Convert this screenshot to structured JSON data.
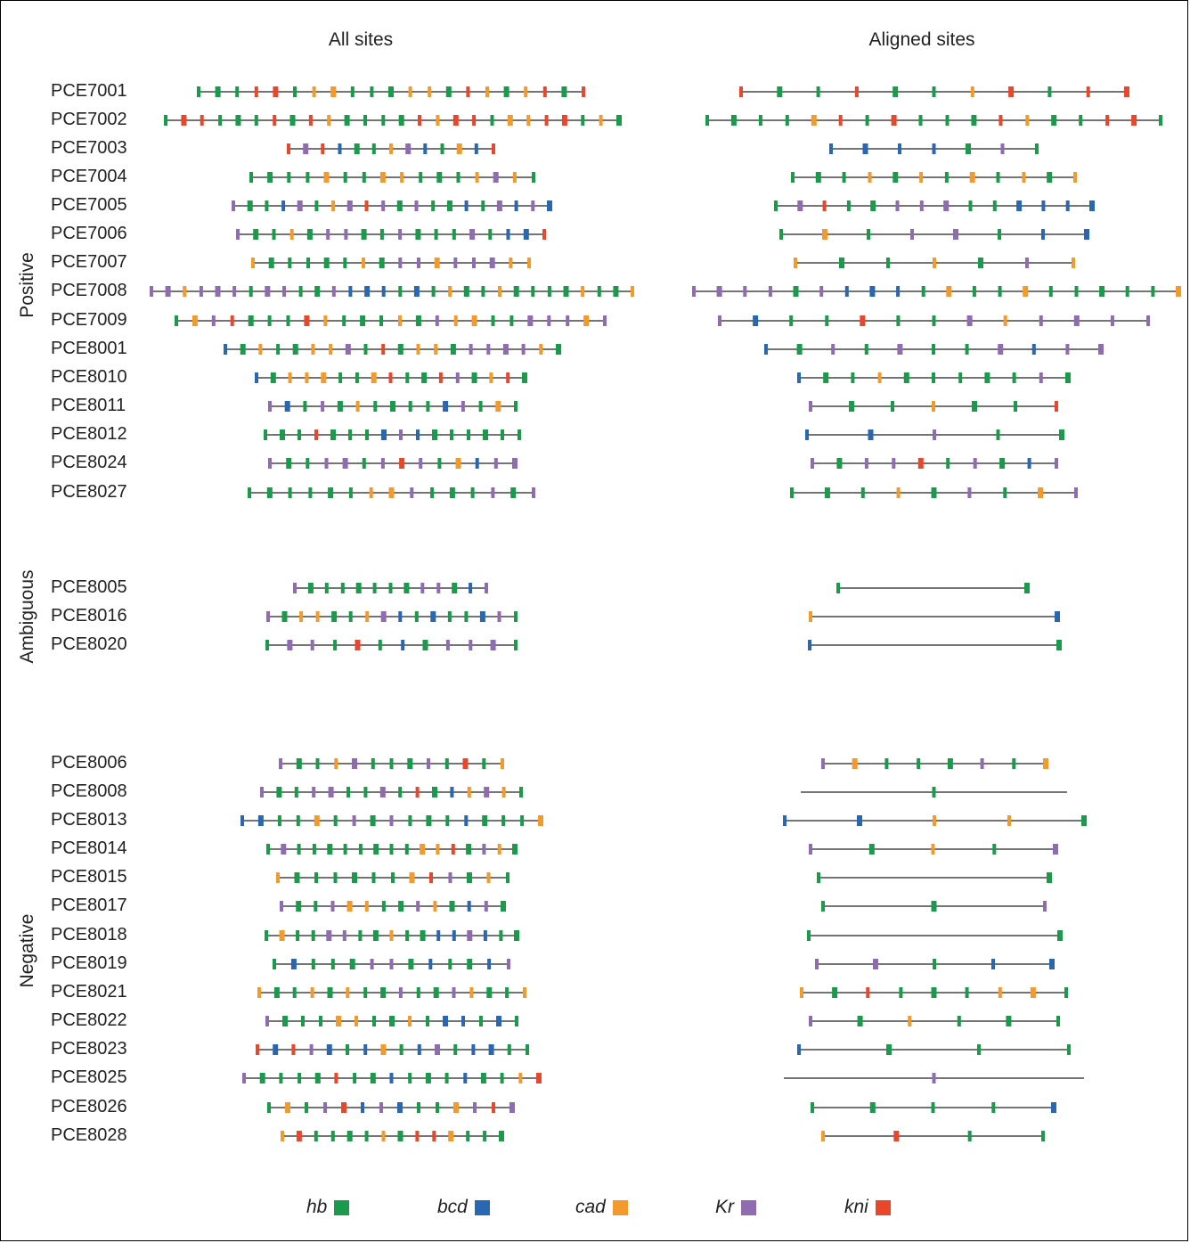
{
  "titles": {
    "all_sites": "All sites",
    "aligned_sites": "Aligned sites"
  },
  "groups": {
    "positive": "Positive",
    "ambiguous": "Ambiguous",
    "negative": "Negative"
  },
  "colors": {
    "hb": "#1a9b4c",
    "bcd": "#2a67b1",
    "cad": "#f39a2c",
    "Kr": "#8f6bb0",
    "kni": "#e8472b",
    "line": "#222222"
  },
  "legend": [
    {
      "key": "hb",
      "label": "hb"
    },
    {
      "key": "bcd",
      "label": "bcd"
    },
    {
      "key": "cad",
      "label": "cad"
    },
    {
      "key": "Kr",
      "label": "Kr"
    },
    {
      "key": "kni",
      "label": "kni"
    }
  ],
  "rows": [
    {
      "name": "PCE7001",
      "group": "positive"
    },
    {
      "name": "PCE7002",
      "group": "positive"
    },
    {
      "name": "PCE7003",
      "group": "positive"
    },
    {
      "name": "PCE7004",
      "group": "positive"
    },
    {
      "name": "PCE7005",
      "group": "positive"
    },
    {
      "name": "PCE7006",
      "group": "positive"
    },
    {
      "name": "PCE7007",
      "group": "positive"
    },
    {
      "name": "PCE7008",
      "group": "positive"
    },
    {
      "name": "PCE7009",
      "group": "positive"
    },
    {
      "name": "PCE8001",
      "group": "positive"
    },
    {
      "name": "PCE8010",
      "group": "positive"
    },
    {
      "name": "PCE8011",
      "group": "positive"
    },
    {
      "name": "PCE8012",
      "group": "positive"
    },
    {
      "name": "PCE8024",
      "group": "positive"
    },
    {
      "name": "PCE8027",
      "group": "positive"
    },
    {
      "name": "PCE8005",
      "group": "ambiguous"
    },
    {
      "name": "PCE8016",
      "group": "ambiguous"
    },
    {
      "name": "PCE8020",
      "group": "ambiguous"
    },
    {
      "name": "PCE8006",
      "group": "negative"
    },
    {
      "name": "PCE8008",
      "group": "negative"
    },
    {
      "name": "PCE8013",
      "group": "negative"
    },
    {
      "name": "PCE8014",
      "group": "negative"
    },
    {
      "name": "PCE8015",
      "group": "negative"
    },
    {
      "name": "PCE8017",
      "group": "negative"
    },
    {
      "name": "PCE8018",
      "group": "negative"
    },
    {
      "name": "PCE8019",
      "group": "negative"
    },
    {
      "name": "PCE8021",
      "group": "negative"
    },
    {
      "name": "PCE8022",
      "group": "negative"
    },
    {
      "name": "PCE8023",
      "group": "negative"
    },
    {
      "name": "PCE8025",
      "group": "negative"
    },
    {
      "name": "PCE8026",
      "group": "negative"
    },
    {
      "name": "PCE8028",
      "group": "negative"
    }
  ]
}
